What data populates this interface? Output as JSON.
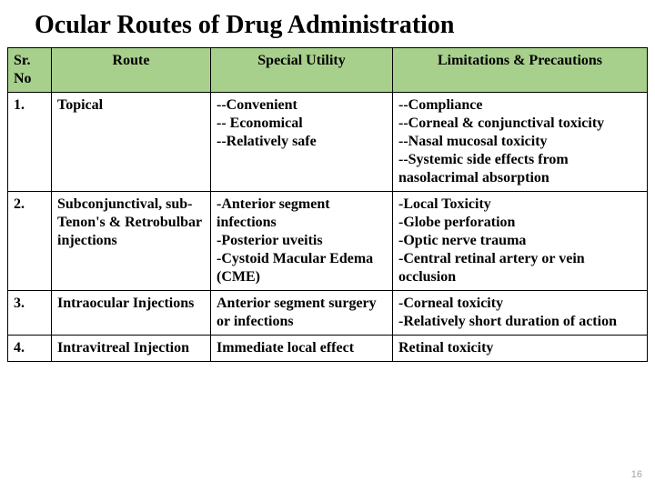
{
  "title": "Ocular Routes of Drug Administration",
  "slide_number": "16",
  "header_bg": "#a8d08d",
  "headers": {
    "c1": "Sr. No",
    "c2": "Route",
    "c3": "Special Utility",
    "c4": "Limitations & Precautions"
  },
  "rows": [
    {
      "no": "1.",
      "route": "Topical",
      "utility": "--Convenient\n-- Economical\n--Relatively safe",
      "limits": "--Compliance\n--Corneal & conjunctival toxicity\n--Nasal mucosal toxicity\n--Systemic side effects from nasolacrimal absorption"
    },
    {
      "no": "2.",
      "route": "Subconjunctival, sub-Tenon's & Retrobulbar injections",
      "utility": "-Anterior segment infections\n-Posterior uveitis\n-Cystoid Macular Edema (CME)",
      "limits": "-Local Toxicity\n-Globe perforation\n-Optic nerve trauma\n-Central retinal artery or vein occlusion"
    },
    {
      "no": "3.",
      "route": "Intraocular Injections",
      "utility": "Anterior segment surgery or infections",
      "limits": "-Corneal toxicity\n-Relatively short duration of action"
    },
    {
      "no": "4.",
      "route": "Intravitreal Injection",
      "utility": "Immediate local effect",
      "limits": "Retinal toxicity"
    }
  ]
}
